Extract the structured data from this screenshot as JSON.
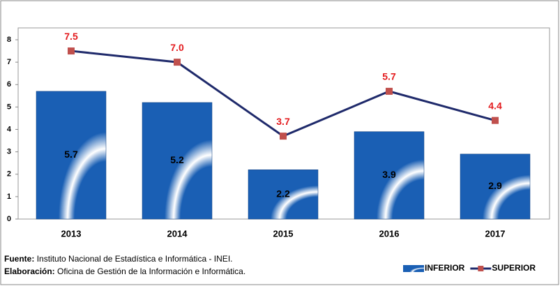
{
  "chart_data": {
    "type": "bar_line",
    "categories": [
      "2013",
      "2014",
      "2015",
      "2016",
      "2017"
    ],
    "series": [
      {
        "name": "INFERIOR",
        "type": "bar",
        "color": "#1a5fb4",
        "values": [
          5.7,
          5.2,
          2.2,
          3.9,
          2.9
        ]
      },
      {
        "name": "SUPERIOR",
        "type": "line",
        "color": "#1f2a6b",
        "marker_color": "#c0504d",
        "values": [
          7.5,
          7.0,
          3.7,
          5.7,
          4.4
        ],
        "value_labels": [
          "7.5",
          "7.0",
          "3.7",
          "5.7",
          "4.4"
        ]
      }
    ],
    "ylim": [
      0,
      8
    ],
    "yticks": [
      0,
      1,
      2,
      3,
      4,
      5,
      6,
      7,
      8
    ],
    "grid": false,
    "legend": "bottom-right",
    "notes": [
      {
        "label": "Fuente:",
        "text": "Instituto Nacional de Estadística e Informática - INEI."
      },
      {
        "label": "Elaboración:",
        "text": "Oficina de Gestión de la Información e Informática."
      }
    ]
  }
}
